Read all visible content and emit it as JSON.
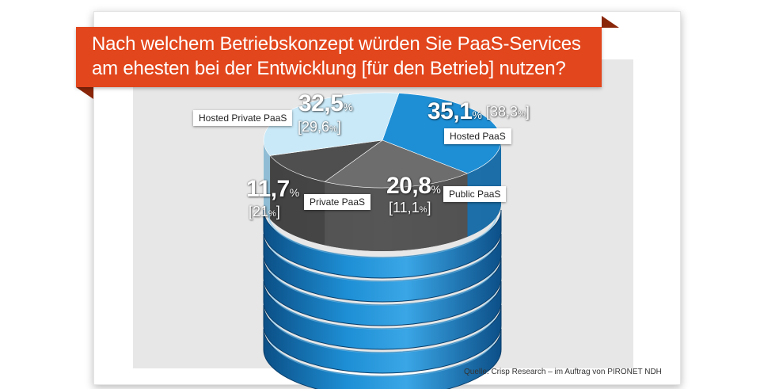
{
  "title": {
    "line1": "Nach welchem Betriebskonzept würden Sie PaaS-Services",
    "line2": "am ehesten bei der Entwicklung [für den Betrieb] nutzen?"
  },
  "source": "Quelle: Crisp Research – im Auftrag von PIRONET NDH",
  "colors": {
    "banner": "#e2461c",
    "hosted_private_paas": "#c9e9f8",
    "hosted_paas": "#1e8fd5",
    "public_paas": "#6d6d6d",
    "private_paas": "#4f4f4f"
  },
  "chart_data": {
    "type": "pie",
    "style": "3d-stacked-disks",
    "categories": [
      "Hosted PaaS",
      "Public PaaS",
      "Private PaaS",
      "Hosted Private PaaS"
    ],
    "series": [
      {
        "values": [
          35.1,
          20.8,
          11.7,
          32.5
        ]
      },
      {
        "values": [
          38.3,
          11.1,
          21,
          29.6
        ]
      }
    ],
    "display": {
      "hosted_paas": {
        "label": "Hosted PaaS",
        "value": "35,1",
        "bracket_open": "[38,3",
        "bracket_close": "]"
      },
      "public_paas": {
        "label": "Public PaaS",
        "value": "20,8",
        "bracket_open": "[11,1",
        "bracket_close": "]"
      },
      "private_paas": {
        "label": "Private PaaS",
        "value": "11,7",
        "bracket_open": "[21",
        "bracket_close": "]"
      },
      "hosted_private_paas": {
        "label": "Hosted Private PaaS",
        "value": "32,5",
        "bracket_open": "[29,6",
        "bracket_close": "]"
      }
    },
    "percent_symbol": "%"
  }
}
